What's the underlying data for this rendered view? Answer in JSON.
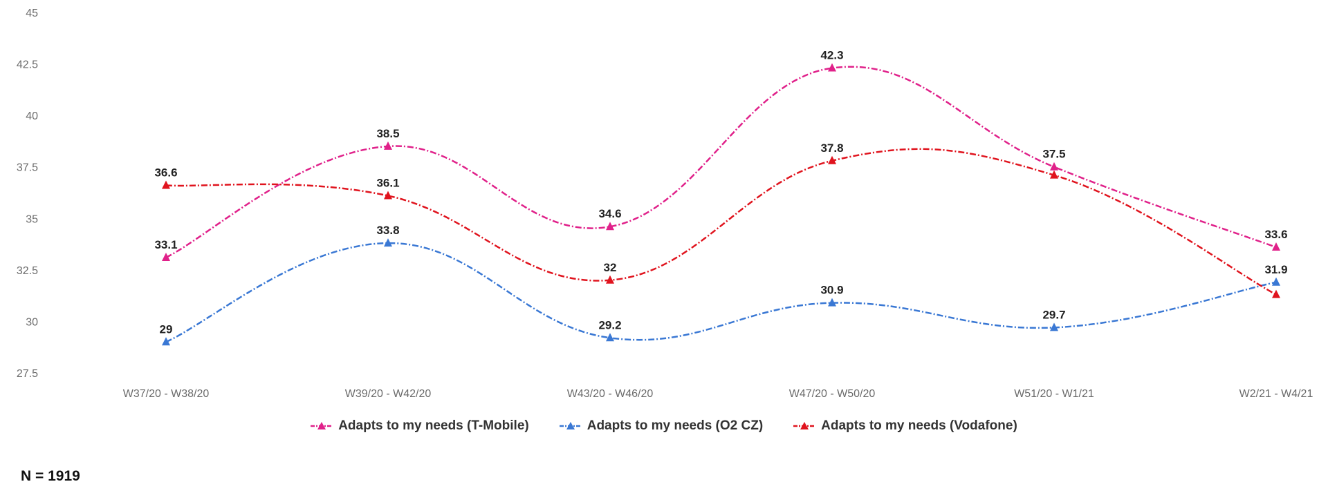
{
  "chart_data": {
    "type": "line",
    "categories": [
      "W37/20 - W38/20",
      "W39/20 - W42/20",
      "W43/20 - W46/20",
      "W47/20 - W50/20",
      "W51/20 - W1/21",
      "W2/21 - W4/21"
    ],
    "ylim": [
      27.5,
      45
    ],
    "yticks": [
      "45",
      "42.5",
      "40",
      "37.5",
      "35",
      "32.5",
      "30",
      "27.5"
    ],
    "grid": false,
    "legend_position": "bottom",
    "series": [
      {
        "name": "Adapts to my needs (T-Mobile)",
        "color": "#e0218a",
        "values": [
          33.1,
          38.5,
          34.6,
          42.3,
          37.5,
          33.6
        ],
        "labels": [
          "33.1",
          "38.5",
          "34.6",
          "42.3",
          "37.5",
          "33.6"
        ]
      },
      {
        "name": "Adapts to my needs (O2 CZ)",
        "color": "#3a78d4",
        "values": [
          29,
          33.8,
          29.2,
          30.9,
          29.7,
          31.9
        ],
        "labels": [
          "29",
          "33.8",
          "29.2",
          "30.9",
          "29.7",
          "31.9"
        ]
      },
      {
        "name": "Adapts to my needs (Vodafone)",
        "color": "#e0141e",
        "values": [
          36.6,
          36.1,
          32,
          37.8,
          37.1,
          31.3
        ],
        "labels": [
          "36.6",
          "36.1",
          "32",
          "37.8",
          "",
          ""
        ]
      }
    ]
  },
  "footnote": "N = 1919"
}
